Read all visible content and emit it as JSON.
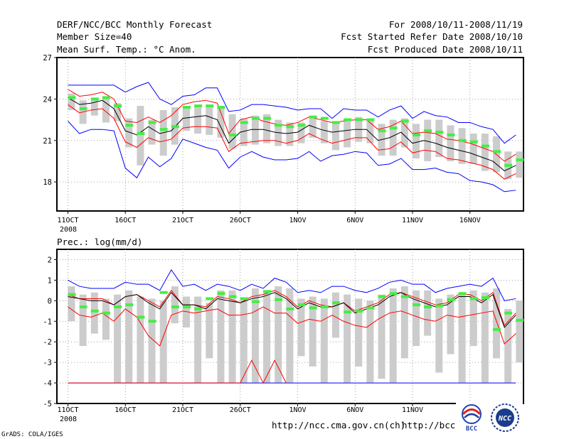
{
  "header": {
    "title": "DERF/NCC/BCC Monthly Forecast",
    "member_size": "Member Size=40",
    "variable": "Mean Surf. Temp.: °C Anom.",
    "period": "For 2008/10/11-2008/11/19",
    "started": "Fcst Started Refer Date 2008/10/10",
    "produced": "Fcst Produced Date 2008/10/11"
  },
  "footer": {
    "url1": "http://ncc.cma.gov.cn(ch)",
    "url2": "http://bcc.c",
    "grads": "GrADS: COLA/IGES",
    "logo_bcc": "BCC",
    "logo_ncc": "NCC"
  },
  "colors": {
    "envelope": "#0000ff",
    "spread": "#ff0000",
    "mean": "#000000",
    "observed": "#44ee44",
    "box": "#cccccc"
  },
  "chart_data": [
    {
      "type": "line",
      "title": "Mean Surf. Temp.: °C Anom.",
      "days": 40,
      "x_ticks": [
        "11OCT",
        "16OCT",
        "21OCT",
        "26OCT",
        "1NOV",
        "6NOV",
        "11NOV",
        "16NOV"
      ],
      "x_tick_days": [
        1,
        6,
        11,
        16,
        21,
        26,
        31,
        36
      ],
      "x_sublabel": "2008",
      "ylim": [
        15.9,
        27
      ],
      "y_ticks": [
        18,
        21,
        24,
        27
      ],
      "series": [
        {
          "name": "max",
          "values": [
            25,
            25,
            25,
            25,
            25,
            24.5,
            24.9,
            25.2,
            24,
            23.6,
            24.2,
            24.3,
            24.8,
            24.8,
            23.1,
            23.2,
            23.6,
            23.6,
            23.5,
            23.4,
            23.2,
            23.3,
            23.3,
            22.6,
            23.3,
            23.2,
            23.2,
            22.7,
            23.2,
            23.5,
            22.6,
            23.1,
            22.8,
            22.7,
            22.3,
            22.3,
            22,
            21.8,
            20.8,
            21.4
          ]
        },
        {
          "name": "upper",
          "values": [
            24.7,
            24.2,
            24.3,
            24.5,
            24,
            22.4,
            22.3,
            22.7,
            22.3,
            22.8,
            23.6,
            23.8,
            23.9,
            23.7,
            21.5,
            22.5,
            22.7,
            22.4,
            22.2,
            22.1,
            22.3,
            22.7,
            22.5,
            22.3,
            22.4,
            22.5,
            22.5,
            21.8,
            22,
            22.4,
            21.5,
            21.6,
            21.5,
            21.1,
            21,
            20.8,
            20.5,
            20.2,
            19.5,
            20
          ]
        },
        {
          "name": "mean",
          "values": [
            24.1,
            23.6,
            23.7,
            23.9,
            23.3,
            21.7,
            21.4,
            22,
            21.5,
            21.7,
            22.6,
            22.7,
            22.8,
            22.5,
            20.8,
            21.6,
            21.8,
            21.8,
            21.6,
            21.5,
            21.6,
            22.1,
            21.8,
            21.6,
            21.7,
            21.8,
            21.8,
            21,
            21.2,
            21.6,
            20.8,
            21,
            20.8,
            20.5,
            20.3,
            20.1,
            19.8,
            19.5,
            18.8,
            19.2
          ]
        },
        {
          "name": "lower",
          "values": [
            23.6,
            23,
            23.2,
            23.3,
            22.6,
            20.9,
            20.5,
            21.2,
            20.9,
            21.1,
            21.9,
            22,
            22,
            21.9,
            20.2,
            20.8,
            20.9,
            21,
            21,
            20.8,
            21,
            21.5,
            21.1,
            20.8,
            21,
            21.2,
            21.2,
            20.3,
            20.4,
            20.9,
            20.1,
            20.3,
            20.2,
            19.7,
            19.6,
            19.4,
            19.2,
            18.9,
            18.2,
            18.6
          ]
        },
        {
          "name": "min",
          "values": [
            22.4,
            21.5,
            21.8,
            21.8,
            21.7,
            19,
            18.3,
            19.8,
            19.1,
            19.7,
            21.1,
            20.8,
            20.5,
            20.3,
            19,
            19.8,
            20.2,
            19.8,
            19.6,
            19.6,
            19.7,
            20.2,
            19.5,
            19.9,
            20,
            20.2,
            20.1,
            19.2,
            19.3,
            19.7,
            18.9,
            18.9,
            19,
            18.7,
            18.6,
            18.1,
            18,
            17.8,
            17.3,
            17.4
          ]
        },
        {
          "name": "observed",
          "values": [
            24.1,
            23.3,
            24,
            24.1,
            23.5,
            22.1,
            21.5,
            22.3,
            21.8,
            22,
            23.4,
            23.5,
            23.5,
            23.4,
            21.4,
            22.3,
            22.6,
            22.6,
            22.1,
            22,
            22.1,
            22.7,
            22.6,
            22.3,
            22.5,
            22.5,
            22.5,
            21.7,
            21.9,
            22.4,
            21.4,
            21.7,
            21.6,
            21.4,
            21,
            20.9,
            20.6,
            20.2,
            19.2,
            19.6
          ]
        },
        {
          "name": "box_high",
          "values": [
            24.4,
            23.9,
            24.1,
            24.1,
            23.7,
            22.6,
            23.5,
            22.5,
            23.2,
            23.4,
            23.3,
            23.4,
            23.6,
            23.5,
            22.9,
            22.6,
            22.8,
            22.9,
            22.5,
            22.3,
            22.3,
            22.6,
            22.4,
            22.4,
            22.5,
            22.7,
            22.6,
            22.2,
            22.5,
            22.6,
            22.2,
            22.5,
            22.5,
            22.1,
            21.9,
            21.5,
            21.5,
            21.3,
            20.2,
            20.2
          ]
        },
        {
          "name": "box_low",
          "values": [
            23.2,
            22.2,
            22.8,
            22.3,
            22.4,
            20.5,
            19.2,
            20.7,
            19.9,
            20.7,
            21.7,
            21.5,
            21.4,
            21.2,
            20.4,
            20.6,
            20.7,
            20.8,
            20.6,
            20.6,
            20.8,
            21.2,
            20.8,
            20.3,
            20.5,
            20.9,
            20.8,
            19.9,
            19.9,
            20.5,
            19.7,
            19.5,
            19.8,
            19.5,
            19.3,
            19.3,
            18.8,
            18.7,
            18.2,
            18.3
          ]
        }
      ]
    },
    {
      "type": "line",
      "title": "Prec.: log(mm/d)",
      "days": 40,
      "x_ticks": [
        "11OCT",
        "16OCT",
        "21OCT",
        "26OCT",
        "1NOV",
        "6NOV",
        "11NOV",
        "16NOV"
      ],
      "x_tick_days": [
        1,
        6,
        11,
        16,
        21,
        26,
        31,
        36
      ],
      "x_sublabel": "2008",
      "ylim": [
        -5,
        2.5
      ],
      "y_ticks": [
        -5,
        -4,
        -3,
        -2,
        -1,
        0,
        1,
        2
      ],
      "series": [
        {
          "name": "max",
          "values": [
            1,
            0.7,
            0.6,
            0.6,
            0.6,
            0.9,
            0.8,
            0.8,
            0.5,
            1.5,
            0.7,
            0.8,
            0.5,
            0.8,
            0.7,
            0.5,
            0.8,
            0.6,
            1.1,
            0.9,
            0.4,
            0.5,
            0.4,
            0.7,
            0.7,
            0.5,
            0.4,
            0.6,
            0.9,
            1,
            0.8,
            0.8,
            0.4,
            0.6,
            0.7,
            0.8,
            0.7,
            1.1,
            0,
            0.1
          ]
        },
        {
          "name": "mean",
          "values": [
            0.2,
            0.1,
            0,
            0,
            -0.2,
            0.2,
            0.3,
            -0.1,
            -0.4,
            0.4,
            -0.2,
            -0.2,
            -0.4,
            0.1,
            0,
            -0.1,
            0.1,
            0.2,
            0.4,
            0.1,
            -0.4,
            -0.1,
            -0.3,
            -0.3,
            -0.1,
            -0.6,
            -0.4,
            -0.2,
            0.2,
            0.4,
            0.1,
            -0.1,
            -0.3,
            -0.2,
            0.2,
            0.2,
            -0.1,
            0.3,
            -1.3,
            -0.7
          ]
        },
        {
          "name": "lower",
          "values": [
            -0.3,
            -0.7,
            -0.8,
            -0.6,
            -1,
            -0.4,
            -0.8,
            -1.7,
            -2.2,
            -0.7,
            -0.5,
            -0.6,
            -0.5,
            -0.4,
            -0.7,
            -0.7,
            -0.6,
            -0.3,
            -0.6,
            -0.6,
            -1.1,
            -0.9,
            -1,
            -0.7,
            -1,
            -1.2,
            -1.3,
            -0.9,
            -0.6,
            -0.5,
            -0.7,
            -0.9,
            -1,
            -0.7,
            -0.8,
            -0.7,
            -0.6,
            -0.5,
            -2.1,
            -1.6
          ]
        },
        {
          "name": "upper",
          "values": [
            0.3,
            0.1,
            0.1,
            0.1,
            -0.2,
            0.2,
            0.3,
            0,
            -0.3,
            0.5,
            -0.2,
            -0.2,
            -0.3,
            0.2,
            0.1,
            -0.1,
            0.2,
            0.3,
            0.5,
            0.2,
            -0.3,
            0,
            -0.2,
            -0.3,
            -0.1,
            -0.5,
            -0.3,
            -0.1,
            0.3,
            0.4,
            0.2,
            0,
            -0.2,
            -0.1,
            0.3,
            0.3,
            0,
            0.4,
            -1.2,
            -0.6
          ]
        },
        {
          "name": "min",
          "values": [
            -4,
            -4,
            -4,
            -4,
            -4,
            -4,
            -4,
            -4,
            -4,
            -4,
            -4,
            -4,
            -4,
            -4,
            -4,
            -4,
            -4,
            -4,
            -4,
            -4,
            -4,
            -4,
            -4,
            -4,
            -4,
            -4,
            -4,
            -4,
            -4,
            -4,
            -4,
            -4,
            -4,
            -4,
            -4,
            -4,
            -4,
            -4,
            -4,
            -4
          ]
        },
        {
          "name": "min_red",
          "values": [
            -4,
            -4,
            -4,
            -4,
            -4,
            -4,
            -4,
            -4,
            -4,
            -4,
            -4,
            -4,
            -4,
            -4,
            -4,
            -4,
            -2.9,
            -4,
            -2.9,
            -4
          ]
        },
        {
          "name": "observed",
          "values": [
            0.3,
            -0.3,
            -0.5,
            -0.6,
            -0.3,
            -0.2,
            -0.8,
            -1,
            0.4,
            -0.3,
            -0.3,
            -0.4,
            0.1,
            0.35,
            0.2,
            0.1,
            -0.05,
            0.45,
            0.05,
            -0.4,
            -0.2,
            -0.35,
            -0.3,
            -0.1,
            -0.55,
            -0.5,
            -0.35,
            0.2,
            0.35,
            0.2,
            -0.2,
            -0.3,
            -0.25,
            0.05,
            0.35,
            0.1,
            0.15,
            -1.4,
            -0.6,
            -0.95
          ]
        },
        {
          "name": "box_high",
          "values": [
            0.7,
            0.3,
            0.4,
            0.1,
            0.3,
            0.5,
            0.2,
            0.1,
            0,
            0.7,
            0.2,
            0.2,
            -0.1,
            0.5,
            0.5,
            0.1,
            0.6,
            0.4,
            0.7,
            0.6,
            0.1,
            0.2,
            0.1,
            0.4,
            0.3,
            0.1,
            0,
            0.3,
            0.6,
            0.7,
            0.5,
            0.5,
            0.1,
            0.3,
            0.4,
            0.5,
            0.4,
            0.6,
            -0.4,
            0
          ]
        },
        {
          "name": "box_low",
          "values": [
            -1,
            -2.2,
            -1.6,
            -1.9,
            -4,
            -4,
            -4,
            -4,
            -4,
            -1.1,
            -1.3,
            -4,
            -2.8,
            -4,
            -4,
            -4,
            -4,
            -4,
            -4,
            -4,
            -2.7,
            -3.2,
            -4,
            -1.8,
            -4,
            -3.2,
            -4,
            -3.8,
            -4,
            -2.8,
            -2.2,
            -1.7,
            -3.5,
            -2.6,
            -4,
            -2.2,
            -4,
            -2.8,
            -4,
            -3
          ]
        }
      ]
    }
  ]
}
